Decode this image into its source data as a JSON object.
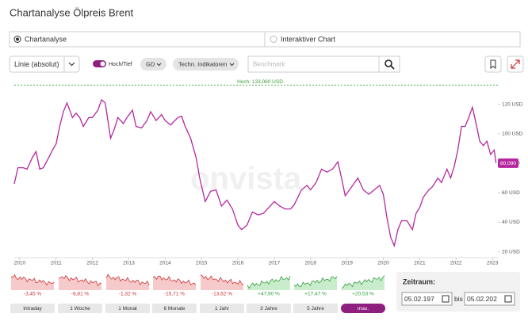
{
  "header": {
    "title": "Chartanalyse Ölpreis Brent"
  },
  "tabs": [
    "Chartanalyse",
    "Interaktiver Chart"
  ],
  "toolbar": {
    "chart_type": "Linie (absolut)",
    "toggle": "Hoch/Tief",
    "gd": "GD",
    "indicators": "Techn. Indikatoren",
    "search_placeholder": "Benchmark"
  },
  "chart_data": {
    "type": "line",
    "color": "#b5289f",
    "watermark": "onvista",
    "x": [
      2009.85,
      2009.95,
      2010.1,
      2010.2,
      2010.35,
      2010.45,
      2010.55,
      2010.65,
      2010.8,
      2010.9,
      2011.0,
      2011.1,
      2011.2,
      2011.3,
      2011.45,
      2011.55,
      2011.65,
      2011.75,
      2011.9,
      2012.0,
      2012.15,
      2012.25,
      2012.35,
      2012.5,
      2012.6,
      2012.7,
      2012.85,
      2012.95,
      2013.1,
      2013.2,
      2013.35,
      2013.5,
      2013.6,
      2013.75,
      2013.9,
      2014.0,
      2014.15,
      2014.35,
      2014.45,
      2014.55,
      2014.7,
      2014.85,
      2014.95,
      2015.1,
      2015.25,
      2015.4,
      2015.55,
      2015.7,
      2015.85,
      2016.0,
      2016.1,
      2016.25,
      2016.4,
      2016.55,
      2016.7,
      2016.85,
      2017.0,
      2017.15,
      2017.3,
      2017.45,
      2017.55,
      2017.75,
      2017.9,
      2018.0,
      2018.15,
      2018.3,
      2018.45,
      2018.6,
      2018.75,
      2018.85,
      2018.95,
      2019.1,
      2019.3,
      2019.45,
      2019.6,
      2019.75,
      2019.9,
      2020.0,
      2020.1,
      2020.2,
      2020.3,
      2020.4,
      2020.5,
      2020.65,
      2020.8,
      2020.9,
      2021.0,
      2021.1,
      2021.25,
      2021.35,
      2021.5,
      2021.6,
      2021.75,
      2021.85,
      2021.95,
      2022.05,
      2022.15,
      2022.25,
      2022.35,
      2022.45,
      2022.55,
      2022.65,
      2022.75,
      2022.85,
      2022.95,
      2023.05,
      2023.1
    ],
    "values": [
      66,
      77,
      77,
      76,
      84,
      88,
      76,
      77,
      84,
      89,
      93,
      105,
      115,
      121,
      111,
      114,
      111,
      105,
      111,
      111,
      116,
      123,
      121,
      97,
      103,
      111,
      107,
      111,
      116,
      105,
      104,
      109,
      115,
      109,
      113,
      109,
      106,
      111,
      112,
      105,
      97,
      84,
      70,
      54,
      61,
      62,
      51,
      55,
      49,
      38,
      35,
      38,
      47,
      45,
      46,
      50,
      54,
      51,
      49,
      49,
      52,
      62,
      65,
      62,
      67,
      76,
      74,
      76,
      81,
      70,
      58,
      63,
      70,
      62,
      59,
      62,
      65,
      59,
      43,
      30,
      24,
      35,
      41,
      41,
      35,
      46,
      50,
      57,
      62,
      64,
      70,
      67,
      76,
      70,
      78,
      89,
      105,
      105,
      111,
      118,
      107,
      95,
      92,
      95,
      86,
      89,
      80.09
    ],
    "last_label": "80,090",
    "high_line": {
      "value": 133.06,
      "label": "Hoch: 133,060 USD"
    },
    "xlim": [
      2009.85,
      2023.15
    ],
    "ylim": [
      16,
      137
    ],
    "xticks": [
      2010,
      2011,
      2012,
      2013,
      2014,
      2015,
      2016,
      2017,
      2018,
      2019,
      2020,
      2021,
      2022,
      2023
    ],
    "yticks": [
      {
        "value": 20,
        "label": "20 USD"
      },
      {
        "value": 40,
        "label": "40 USD"
      },
      {
        "value": 60,
        "label": "60 USD"
      },
      {
        "value": 80,
        "label": "80 USD"
      },
      {
        "value": 100,
        "label": "100 USD"
      },
      {
        "value": 120,
        "label": "120 USD"
      }
    ],
    "grid": false
  },
  "periods": [
    {
      "label": "Intraday",
      "change": "-3,45 %"
    },
    {
      "label": "1 Woche",
      "change": "-6,81 %"
    },
    {
      "label": "1 Monat",
      "change": "-1,32 %"
    },
    {
      "label": "6 Monate",
      "change": "-15,71 %"
    },
    {
      "label": "1 Jahr",
      "change": "-13,62 %"
    },
    {
      "label": "3 Jahre",
      "change": "+47,90 %"
    },
    {
      "label": "5 Jahre",
      "change": "+17,47 %"
    },
    {
      "label": "max.",
      "change": "+20,53 %"
    }
  ],
  "selected_period": 7,
  "timeframe": {
    "label": "Zeitraum:",
    "from": "05.02.197",
    "separator": "bis",
    "to": "05.02.202"
  }
}
